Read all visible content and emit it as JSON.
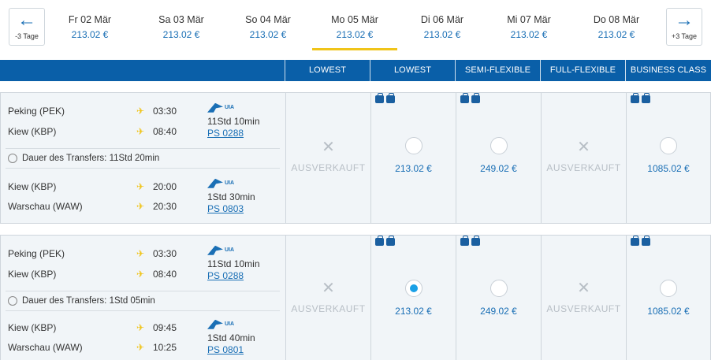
{
  "nav": {
    "prev_label": "-3 Tage",
    "next_label": "+3 Tage"
  },
  "days": [
    {
      "label": "Fr 02 Mär",
      "price": "213.02 €"
    },
    {
      "label": "Sa 03 Mär",
      "price": "213.02 €"
    },
    {
      "label": "So 04 Mär",
      "price": "213.02 €"
    },
    {
      "label": "Mo 05 Mär",
      "price": "213.02 €",
      "active": true
    },
    {
      "label": "Di 06 Mär",
      "price": "213.02 €"
    },
    {
      "label": "Mi 07 Mär",
      "price": "213.02 €"
    },
    {
      "label": "Do 08 Mär",
      "price": "213.02 €"
    }
  ],
  "headers": [
    "LOWEST AVAILABLE",
    "LOWEST AVAILABLE",
    "SEMI-FLEXIBLE",
    "FULL-FLEXIBLE",
    "BUSINESS CLASS"
  ],
  "airline_logo_text": "UIA",
  "sold_out_text": "AUSVERKAUFT",
  "flights": [
    {
      "legs": [
        {
          "from": "Peking (PEK)",
          "dep": "03:30",
          "to": "Kiew (KBP)",
          "arr": "08:40",
          "duration": "11Std 10min",
          "flight_no": "PS 0288"
        },
        {
          "from": "Kiew (KBP)",
          "dep": "20:00",
          "to": "Warschau (WAW)",
          "arr": "20:30",
          "duration": "1Std 30min",
          "flight_no": "PS 0803"
        }
      ],
      "transfer": "Dauer des Transfers: 11Std 20min",
      "fares": [
        {
          "price": "",
          "sold_out": true,
          "selected": false
        },
        {
          "price": "213.02 €",
          "sold_out": false,
          "selected": false
        },
        {
          "price": "249.02 €",
          "sold_out": false,
          "selected": false
        },
        {
          "price": "",
          "sold_out": true,
          "selected": false
        },
        {
          "price": "1085.02 €",
          "sold_out": false,
          "selected": false
        }
      ]
    },
    {
      "legs": [
        {
          "from": "Peking (PEK)",
          "dep": "03:30",
          "to": "Kiew (KBP)",
          "arr": "08:40",
          "duration": "11Std 10min",
          "flight_no": "PS 0288"
        },
        {
          "from": "Kiew (KBP)",
          "dep": "09:45",
          "to": "Warschau (WAW)",
          "arr": "10:25",
          "duration": "1Std 40min",
          "flight_no": "PS 0801"
        }
      ],
      "transfer": "Dauer des Transfers: 1Std 05min",
      "fares": [
        {
          "price": "",
          "sold_out": true,
          "selected": false
        },
        {
          "price": "213.02 €",
          "sold_out": false,
          "selected": true
        },
        {
          "price": "249.02 €",
          "sold_out": false,
          "selected": false
        },
        {
          "price": "",
          "sold_out": true,
          "selected": false
        },
        {
          "price": "1085.02 €",
          "sold_out": false,
          "selected": false
        }
      ]
    }
  ],
  "colors": {
    "brand": "#0a5fa8",
    "accent": "#f0c419",
    "link": "#1a6fb5",
    "radio_selected": "#1aa0e6"
  },
  "icons": {
    "prev": "arrow-left-icon",
    "next": "arrow-right-icon",
    "takeoff": "takeoff-icon",
    "landing": "landing-icon",
    "transfer": "clock-icon",
    "baggage": "luggage-icon"
  }
}
